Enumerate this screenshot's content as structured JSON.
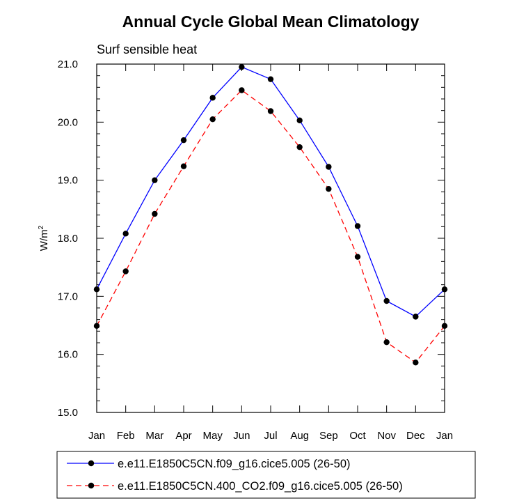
{
  "chart_data": {
    "type": "line",
    "title": "Annual Cycle Global Mean Climatology",
    "subtitle": "Surf sensible heat",
    "ylabel": "W/m",
    "ylabel_superscript": "2",
    "xlabel": "",
    "categories": [
      "Jan",
      "Feb",
      "Mar",
      "Apr",
      "May",
      "Jun",
      "Jul",
      "Aug",
      "Sep",
      "Oct",
      "Nov",
      "Dec",
      "Jan"
    ],
    "ylim": [
      15.0,
      21.0
    ],
    "yticks": [
      "15.0",
      "16.0",
      "17.0",
      "18.0",
      "19.0",
      "20.0",
      "21.0"
    ],
    "yticks_values": [
      15.0,
      16.0,
      17.0,
      18.0,
      19.0,
      20.0,
      21.0
    ],
    "series": [
      {
        "name": "e.e11.E1850C5CN.f09_g16.cice5.005 (26-50)",
        "color": "#0000ff",
        "dash": "solid",
        "values": [
          17.12,
          18.08,
          19.0,
          19.69,
          20.42,
          20.95,
          20.74,
          20.03,
          19.23,
          18.21,
          16.92,
          16.65,
          17.12
        ]
      },
      {
        "name": "e.e11.E1850C5CN.400_CO2.f09_g16.cice5.005 (26-50)",
        "color": "#ff0000",
        "dash": "dashed",
        "values": [
          16.49,
          17.43,
          18.42,
          19.24,
          20.05,
          20.55,
          20.19,
          19.57,
          18.85,
          17.68,
          16.21,
          15.86,
          16.49
        ]
      }
    ],
    "marker_color": "#000000",
    "legend_position": "bottom"
  }
}
